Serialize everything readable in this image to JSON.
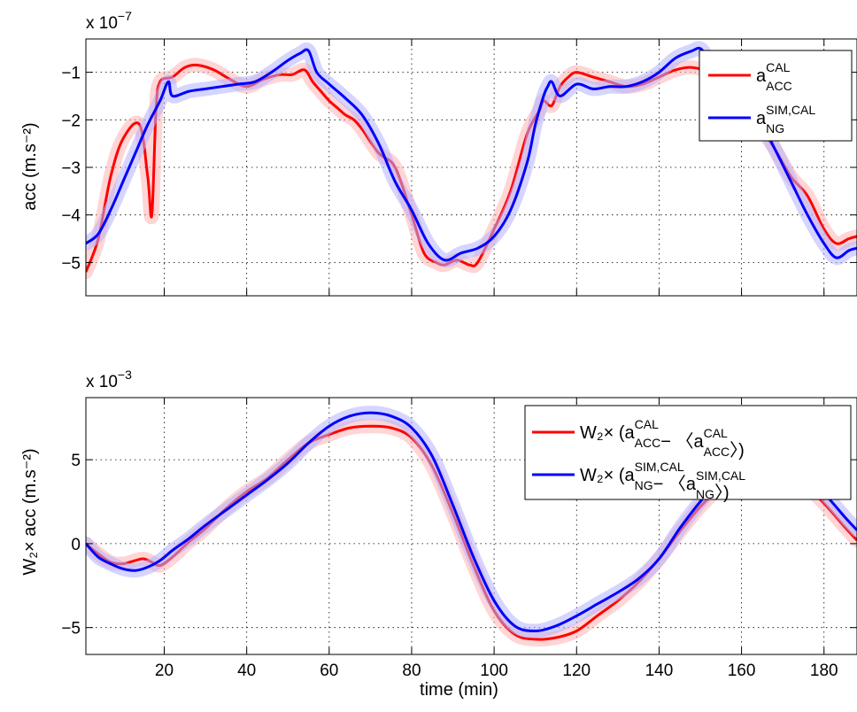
{
  "chart_data": [
    {
      "type": "line",
      "ylabel": "acc (m.s⁻²)",
      "multiplier": {
        "base": "x 10",
        "exponent": "−7"
      },
      "xlim": [
        1,
        188
      ],
      "ylim": [
        -5.7,
        -0.3
      ],
      "xticks": [
        20,
        40,
        60,
        80,
        100,
        120,
        140,
        160,
        180
      ],
      "yticks": [
        -5,
        -4,
        -3,
        -2,
        -1
      ],
      "ytick_labels": [
        "−5",
        "−4",
        "−3",
        "−2",
        "−1"
      ],
      "grid": true,
      "legend_position": "top-right",
      "legend": [
        {
          "base": "a",
          "sup": "CAL",
          "sub": "ACC",
          "color": "#ff0000"
        },
        {
          "base": "a",
          "sup": "SIM,CAL",
          "sub": "NG",
          "color": "#0000ff"
        }
      ],
      "series": [
        {
          "color": "#ff0000",
          "band_color": "#ffb3b3",
          "x": [
            1,
            4,
            7,
            10,
            14,
            16,
            17,
            18,
            19,
            22,
            25,
            28,
            32,
            36,
            40,
            44,
            48,
            51,
            54,
            56,
            58,
            60,
            62,
            64,
            66,
            68,
            72,
            76,
            80,
            83,
            86,
            88,
            91,
            94,
            96,
            100,
            104,
            108,
            111,
            112,
            114,
            116,
            118,
            120,
            124,
            128,
            132,
            136,
            140,
            144,
            148,
            152,
            156,
            160,
            164,
            168,
            172,
            176,
            180,
            183,
            186,
            188
          ],
          "y": [
            -5.2,
            -4.5,
            -3.2,
            -2.4,
            -2.1,
            -3.2,
            -4.0,
            -1.8,
            -1.2,
            -1.1,
            -0.9,
            -0.85,
            -0.95,
            -1.15,
            -1.3,
            -1.15,
            -1.05,
            -1.05,
            -0.95,
            -1.2,
            -1.4,
            -1.6,
            -1.75,
            -1.9,
            -2.0,
            -2.2,
            -2.7,
            -3.0,
            -4.0,
            -4.8,
            -5.0,
            -5.05,
            -4.95,
            -5.05,
            -5.0,
            -4.3,
            -3.5,
            -2.3,
            -1.8,
            -1.6,
            -1.7,
            -1.3,
            -1.1,
            -1.0,
            -1.1,
            -1.2,
            -1.3,
            -1.25,
            -1.1,
            -0.95,
            -0.9,
            -1.0,
            -1.3,
            -1.6,
            -2.1,
            -2.6,
            -3.2,
            -3.6,
            -4.3,
            -4.6,
            -4.5,
            -4.45
          ]
        },
        {
          "color": "#0000ff",
          "band_color": "#b3b3ff",
          "x": [
            1,
            4,
            7,
            10,
            13,
            16,
            19,
            21,
            22,
            26,
            30,
            34,
            38,
            42,
            46,
            50,
            53,
            55,
            57,
            60,
            64,
            68,
            72,
            76,
            80,
            84,
            88,
            92,
            96,
            100,
            104,
            108,
            110,
            112,
            113,
            114,
            116,
            120,
            124,
            128,
            132,
            136,
            140,
            144,
            148,
            150,
            152,
            156,
            160,
            164,
            168,
            172,
            176,
            180,
            183,
            186,
            188
          ],
          "y": [
            -4.6,
            -4.4,
            -3.9,
            -3.3,
            -2.7,
            -2.1,
            -1.6,
            -1.2,
            -1.5,
            -1.4,
            -1.35,
            -1.3,
            -1.25,
            -1.2,
            -1.0,
            -0.75,
            -0.6,
            -0.55,
            -1.0,
            -1.25,
            -1.55,
            -1.9,
            -2.5,
            -3.3,
            -3.9,
            -4.6,
            -4.95,
            -4.8,
            -4.7,
            -4.45,
            -3.9,
            -2.9,
            -2.1,
            -1.5,
            -1.3,
            -1.2,
            -1.5,
            -1.25,
            -1.35,
            -1.3,
            -1.3,
            -1.2,
            -1.0,
            -0.7,
            -0.55,
            -0.5,
            -0.7,
            -1.0,
            -1.4,
            -1.9,
            -2.6,
            -3.3,
            -4.0,
            -4.6,
            -4.9,
            -4.75,
            -4.7
          ]
        }
      ]
    },
    {
      "type": "line",
      "xlabel": "time (min)",
      "ylabel": "W₂× acc (m.s⁻²)",
      "multiplier": {
        "base": "x 10",
        "exponent": "−3"
      },
      "xlim": [
        1,
        188
      ],
      "ylim": [
        -6.6,
        8.7
      ],
      "xticks": [
        20,
        40,
        60,
        80,
        100,
        120,
        140,
        160,
        180
      ],
      "xtick_labels": [
        "20",
        "40",
        "60",
        "80",
        "100",
        "120",
        "140",
        "160",
        "180"
      ],
      "yticks": [
        -5,
        0,
        5
      ],
      "ytick_labels": [
        "−5",
        "0",
        "5"
      ],
      "grid": true,
      "legend_position": "top-right",
      "legend": [
        {
          "prefix": "W₂× (",
          "color": "#ff0000",
          "a": {
            "base": "a",
            "sup": "CAL",
            "sub": "ACC"
          },
          "mid": "− 〈",
          "b": {
            "base": "a",
            "sup": "CAL",
            "sub": "ACC"
          },
          "suffix": "〉)"
        },
        {
          "prefix": "W₂× (",
          "color": "#0000ff",
          "a": {
            "base": "a",
            "sup": "SIM,CAL",
            "sub": "NG"
          },
          "mid": "− 〈",
          "b": {
            "base": "a",
            "sup": "SIM,CAL",
            "sub": "NG"
          },
          "suffix": "〉)"
        }
      ],
      "series": [
        {
          "color": "#ff0000",
          "band_color": "#ffb3b3",
          "x": [
            1,
            4,
            7,
            10,
            13,
            15,
            17,
            19,
            22,
            26,
            30,
            35,
            40,
            45,
            50,
            55,
            60,
            65,
            70,
            75,
            80,
            85,
            90,
            95,
            100,
            105,
            110,
            115,
            120,
            125,
            130,
            135,
            140,
            145,
            150,
            155,
            160,
            165,
            170,
            175,
            180,
            185,
            188
          ],
          "y": [
            0,
            -0.6,
            -1.1,
            -1.2,
            -1.0,
            -0.9,
            -1.1,
            -1.3,
            -0.8,
            0.1,
            0.9,
            2.1,
            3.1,
            3.9,
            5.0,
            6.0,
            6.5,
            6.9,
            7.0,
            6.9,
            6.3,
            4.6,
            1.8,
            -1.3,
            -4.0,
            -5.4,
            -5.7,
            -5.6,
            -5.2,
            -4.3,
            -3.4,
            -2.3,
            -0.9,
            0.7,
            2.2,
            3.4,
            4.4,
            4.7,
            4.4,
            3.6,
            2.4,
            1.0,
            0.2
          ]
        },
        {
          "color": "#0000ff",
          "band_color": "#b3b3ff",
          "x": [
            1,
            4,
            7,
            10,
            13,
            16,
            19,
            22,
            26,
            30,
            35,
            40,
            45,
            50,
            55,
            60,
            65,
            70,
            75,
            80,
            85,
            90,
            95,
            100,
            105,
            110,
            115,
            120,
            125,
            130,
            135,
            140,
            145,
            150,
            155,
            160,
            165,
            170,
            175,
            180,
            185,
            188
          ],
          "y": [
            0,
            -0.8,
            -1.2,
            -1.5,
            -1.6,
            -1.4,
            -1.0,
            -0.4,
            0.3,
            1.1,
            2.0,
            2.9,
            3.8,
            4.8,
            6.0,
            7.0,
            7.6,
            7.8,
            7.6,
            6.9,
            5.2,
            2.3,
            -0.8,
            -3.4,
            -4.9,
            -5.2,
            -4.9,
            -4.3,
            -3.6,
            -2.9,
            -2.1,
            -0.9,
            0.9,
            2.5,
            3.8,
            4.8,
            5.2,
            4.9,
            4.1,
            3.0,
            1.6,
            0.8
          ]
        }
      ]
    }
  ]
}
